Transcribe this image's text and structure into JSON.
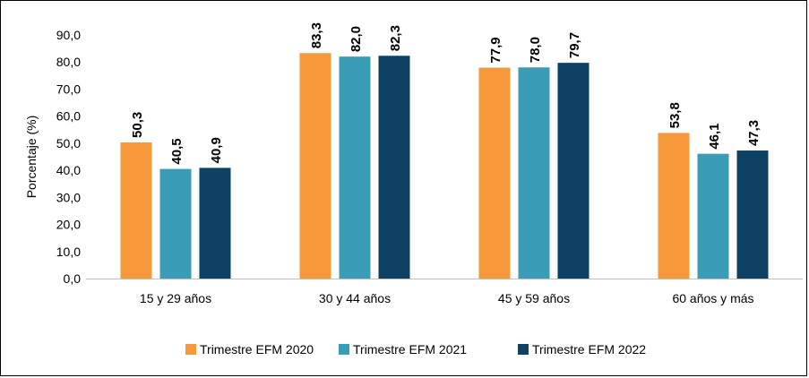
{
  "chart_data": {
    "type": "bar",
    "title": "",
    "xlabel": "",
    "ylabel": "Porcentaje (%)",
    "ylim": [
      0,
      90
    ],
    "yticks": [
      0,
      10,
      20,
      30,
      40,
      50,
      60,
      70,
      80,
      90
    ],
    "ytick_labels": [
      "0,0",
      "10,0",
      "20,0",
      "30,0",
      "40,0",
      "50,0",
      "60,0",
      "70,0",
      "80,0",
      "90,0"
    ],
    "categories": [
      "15 y 29 años",
      "30 y 44 años",
      "45 y 59 años",
      "60 años y más"
    ],
    "series": [
      {
        "name": "Trimestre EFM 2020",
        "color": "#F7993A",
        "values": [
          50.3,
          83.3,
          77.9,
          53.8
        ],
        "labels": [
          "50,3",
          "83,3",
          "77,9",
          "53,8"
        ]
      },
      {
        "name": "Trimestre EFM 2021",
        "color": "#3A9CB6",
        "values": [
          40.5,
          82.0,
          78.0,
          46.1
        ],
        "labels": [
          "40,5",
          "82,0",
          "78,0",
          "46,1"
        ]
      },
      {
        "name": "Trimestre EFM 2022",
        "color": "#0E4265",
        "values": [
          40.9,
          82.3,
          79.7,
          47.3
        ],
        "labels": [
          "40,9",
          "82,3",
          "79,7",
          "47,3"
        ]
      }
    ],
    "grid": false,
    "legend_position": "bottom"
  }
}
